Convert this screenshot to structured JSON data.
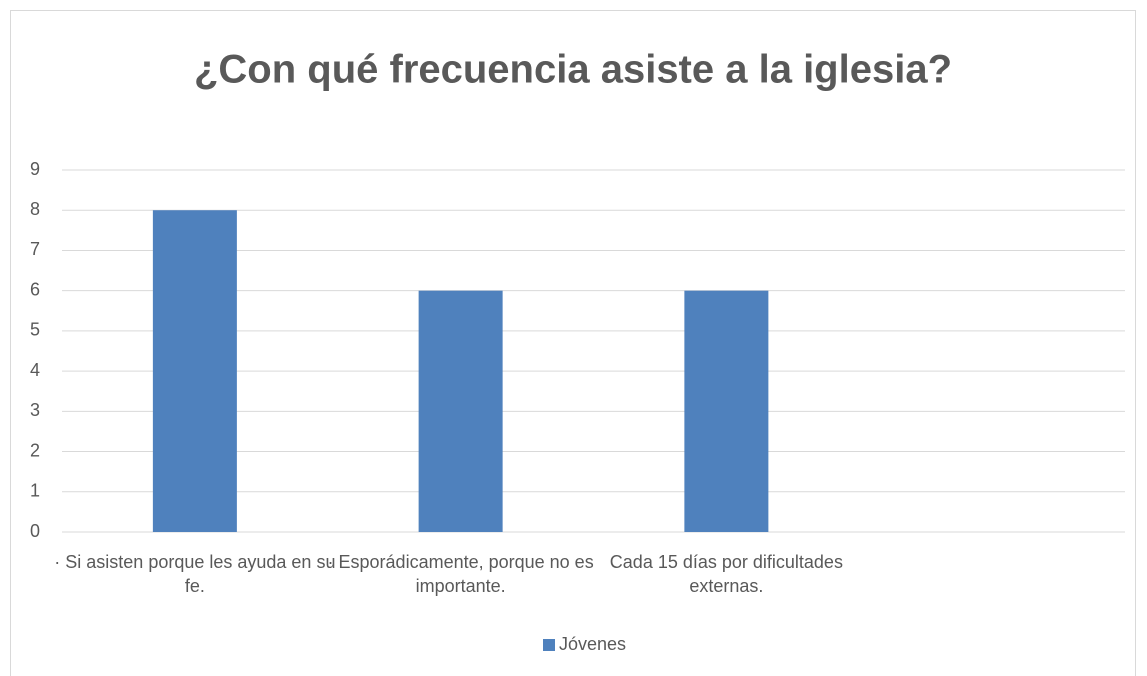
{
  "chart_data": {
    "type": "bar",
    "title": "¿Con qué frecuencia asiste a la iglesia?",
    "categories": [
      "·         Si asisten porque les ayuda en su fe.",
      "·         Esporádicamente, porque no es importante.",
      "Cada 15 días por dificultades externas.",
      null
    ],
    "series": [
      {
        "name": "Jóvenes",
        "color": "#4f81bd",
        "values": [
          8,
          6,
          6,
          null
        ]
      }
    ],
    "ylim": [
      0,
      9
    ],
    "yticks": [
      0,
      1,
      2,
      3,
      4,
      5,
      6,
      7,
      8,
      9
    ],
    "grid": true,
    "legend": "bottom"
  }
}
